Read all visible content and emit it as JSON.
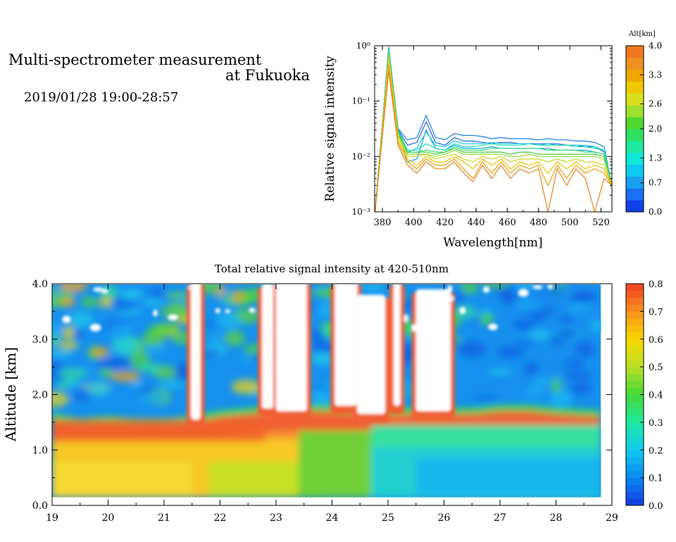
{
  "header": {
    "title_line1": "Multi-spectrometer measurement",
    "title_line2": "at Fukuoka",
    "date": "2019/01/28 19:00-28:57"
  },
  "chart_data": [
    {
      "type": "line",
      "xlabel": "Wavelength[nm]",
      "ylabel": "Relative signal intensity",
      "xlim": [
        375,
        527
      ],
      "ylim": [
        0.001,
        1
      ],
      "y_scale": "log",
      "x_ticks": [
        380,
        400,
        420,
        440,
        460,
        480,
        500,
        520
      ],
      "y_ticks": [
        {
          "value": 0.001,
          "label": "10⁻³"
        },
        {
          "value": 0.01,
          "label": "10⁻²"
        },
        {
          "value": 0.1,
          "label": "10⁻¹"
        },
        {
          "value": 1,
          "label": "10⁰"
        }
      ],
      "x": [
        375,
        384,
        390,
        396,
        402,
        408,
        414,
        420,
        426,
        432,
        438,
        444,
        450,
        456,
        462,
        468,
        474,
        480,
        486,
        492,
        498,
        504,
        510,
        516,
        522,
        527
      ],
      "series": [
        {
          "alt": 0.0,
          "color": "#1f5fe0",
          "values": [
            0.0008,
            0.95,
            0.031,
            0.016,
            0.018,
            0.042,
            0.018,
            0.016,
            0.022,
            0.019,
            0.019,
            0.018,
            0.017,
            0.018,
            0.018,
            0.017,
            0.017,
            0.017,
            0.017,
            0.017,
            0.016,
            0.016,
            0.015,
            0.015,
            0.012,
            0.003
          ]
        },
        {
          "alt": 0.35,
          "color": "#1a7ee8",
          "values": [
            0.0008,
            0.92,
            0.032,
            0.02,
            0.022,
            0.055,
            0.022,
            0.02,
            0.026,
            0.024,
            0.024,
            0.023,
            0.021,
            0.022,
            0.021,
            0.021,
            0.021,
            0.02,
            0.021,
            0.02,
            0.02,
            0.019,
            0.019,
            0.018,
            0.015,
            0.003
          ]
        },
        {
          "alt": 0.7,
          "color": "#0aa0ea",
          "values": [
            0.0008,
            0.9,
            0.03,
            0.008,
            0.009,
            0.03,
            0.014,
            0.013,
            0.016,
            0.014,
            0.014,
            0.014,
            0.015,
            0.014,
            0.014,
            0.014,
            0.014,
            0.014,
            0.014,
            0.013,
            0.013,
            0.013,
            0.013,
            0.012,
            0.011,
            0.003
          ]
        },
        {
          "alt": 1.0,
          "color": "#10c8e0",
          "values": [
            0.0008,
            0.88,
            0.03,
            0.012,
            0.014,
            0.028,
            0.016,
            0.015,
            0.019,
            0.017,
            0.017,
            0.017,
            0.018,
            0.017,
            0.017,
            0.017,
            0.017,
            0.016,
            0.017,
            0.016,
            0.016,
            0.016,
            0.016,
            0.015,
            0.013,
            0.003
          ]
        },
        {
          "alt": 1.3,
          "color": "#20e0b0",
          "values": [
            0.0008,
            0.85,
            0.03,
            0.013,
            0.013,
            0.017,
            0.014,
            0.013,
            0.017,
            0.015,
            0.015,
            0.016,
            0.017,
            0.016,
            0.016,
            0.016,
            0.017,
            0.016,
            0.016,
            0.016,
            0.016,
            0.015,
            0.015,
            0.014,
            0.013,
            0.003
          ]
        },
        {
          "alt": 1.6,
          "color": "#38dc78",
          "values": [
            0.0008,
            0.8,
            0.028,
            0.012,
            0.012,
            0.013,
            0.012,
            0.012,
            0.015,
            0.013,
            0.013,
            0.013,
            0.014,
            0.014,
            0.014,
            0.014,
            0.014,
            0.014,
            0.013,
            0.013,
            0.013,
            0.013,
            0.012,
            0.012,
            0.011,
            0.003
          ]
        },
        {
          "alt": 2.0,
          "color": "#40c83c",
          "values": [
            0.0008,
            0.75,
            0.028,
            0.012,
            0.012,
            0.012,
            0.011,
            0.012,
            0.014,
            0.012,
            0.012,
            0.012,
            0.012,
            0.012,
            0.011,
            0.012,
            0.012,
            0.011,
            0.011,
            0.011,
            0.011,
            0.011,
            0.011,
            0.011,
            0.01,
            0.003
          ]
        },
        {
          "alt": 2.3,
          "color": "#90d830",
          "values": [
            0.0008,
            0.7,
            0.025,
            0.011,
            0.011,
            0.011,
            0.01,
            0.011,
            0.013,
            0.011,
            0.011,
            0.011,
            0.011,
            0.011,
            0.01,
            0.01,
            0.011,
            0.01,
            0.01,
            0.01,
            0.01,
            0.01,
            0.01,
            0.01,
            0.009,
            0.003
          ]
        },
        {
          "alt": 2.6,
          "color": "#c8d820",
          "values": [
            0.0008,
            0.62,
            0.023,
            0.01,
            0.01,
            0.011,
            0.009,
            0.01,
            0.011,
            0.009,
            0.008,
            0.01,
            0.009,
            0.01,
            0.008,
            0.009,
            0.009,
            0.009,
            0.008,
            0.009,
            0.008,
            0.009,
            0.008,
            0.008,
            0.007,
            0.003
          ]
        },
        {
          "alt": 3.0,
          "color": "#f0c000",
          "values": [
            0.0008,
            0.55,
            0.02,
            0.009,
            0.007,
            0.01,
            0.008,
            0.008,
            0.01,
            0.008,
            0.006,
            0.009,
            0.007,
            0.009,
            0.006,
            0.008,
            0.007,
            0.008,
            0.005,
            0.008,
            0.006,
            0.008,
            0.006,
            0.007,
            0.006,
            0.003
          ]
        },
        {
          "alt": 3.3,
          "color": "#f0a010",
          "values": [
            0.0008,
            0.45,
            0.018,
            0.008,
            0.006,
            0.009,
            0.007,
            0.007,
            0.009,
            0.006,
            0.004,
            0.008,
            0.005,
            0.008,
            0.005,
            0.007,
            0.006,
            0.007,
            0.003,
            0.007,
            0.004,
            0.007,
            0.005,
            0.006,
            0.005,
            0.003
          ]
        },
        {
          "alt": 3.6,
          "color": "#e88020",
          "values": [
            0.0008,
            0.35,
            0.016,
            0.007,
            0.005,
            0.008,
            0.006,
            0.006,
            0.008,
            0.005,
            0.0035,
            0.007,
            0.004,
            0.007,
            0.004,
            0.006,
            0.005,
            0.006,
            0.001,
            0.006,
            0.003,
            0.006,
            0.004,
            0.001,
            0.004,
            0.003
          ]
        }
      ],
      "colorbar": {
        "title": "Alt[km]",
        "range": [
          0,
          4
        ],
        "tick_labels": [
          "0.0",
          "0.7",
          "1.3",
          "2.0",
          "2.6",
          "3.3",
          "4.0"
        ],
        "colors": [
          "#1040e8",
          "#1a70f0",
          "#1aa0f0",
          "#10c8f0",
          "#10e8d8",
          "#20e8a0",
          "#30e060",
          "#50d830",
          "#a0e030",
          "#d8e020",
          "#f0c800",
          "#f0a800",
          "#f09020",
          "#f07820"
        ]
      }
    },
    {
      "type": "heatmap",
      "title": "Total relative signal intensity at 420-510nm",
      "ylabel": "Altitude [km]",
      "xlim": [
        19,
        29
      ],
      "ylim": [
        0,
        4
      ],
      "data_x_range": [
        19,
        28.8
      ],
      "data_y_range": [
        0.15,
        4
      ],
      "x_ticks": [
        "19",
        "20",
        "21",
        "22",
        "23",
        "24",
        "25",
        "26",
        "27",
        "28",
        "29"
      ],
      "y_ticks": [
        "0.0",
        "1.0",
        "2.0",
        "3.0",
        "4.0"
      ],
      "colorbar": {
        "range": [
          0,
          0.8
        ],
        "tick_labels": [
          "0.0",
          "0.1",
          "0.2",
          "0.3",
          "0.4",
          "0.5",
          "0.6",
          "0.7",
          "0.8"
        ],
        "stops": [
          "#1438e0",
          "#0a88f0",
          "#12c8f0",
          "#20e8a0",
          "#44d838",
          "#b8e028",
          "#f8d800",
          "#f89020",
          "#f04020"
        ]
      },
      "boundary_layer_top_km": [
        {
          "x": 19.0,
          "h": 1.55
        },
        {
          "x": 19.5,
          "h": 1.45
        },
        {
          "x": 20.0,
          "h": 1.5
        },
        {
          "x": 20.5,
          "h": 1.45
        },
        {
          "x": 21.0,
          "h": 1.45
        },
        {
          "x": 21.5,
          "h": 1.5
        },
        {
          "x": 22.0,
          "h": 1.6
        },
        {
          "x": 22.5,
          "h": 1.65
        },
        {
          "x": 23.0,
          "h": 1.7
        },
        {
          "x": 23.5,
          "h": 1.7
        },
        {
          "x": 24.0,
          "h": 1.7
        },
        {
          "x": 24.5,
          "h": 1.65
        },
        {
          "x": 25.0,
          "h": 1.65
        },
        {
          "x": 25.5,
          "h": 1.65
        },
        {
          "x": 26.0,
          "h": 1.65
        },
        {
          "x": 26.5,
          "h": 1.65
        },
        {
          "x": 27.0,
          "h": 1.7
        },
        {
          "x": 27.5,
          "h": 1.7
        },
        {
          "x": 28.0,
          "h": 1.65
        },
        {
          "x": 28.8,
          "h": 1.6
        }
      ],
      "cloud_columns": [
        {
          "x0": 21.48,
          "x1": 21.65,
          "y0": 1.55,
          "y1": 4.0
        },
        {
          "x0": 22.75,
          "x1": 22.95,
          "y0": 1.75,
          "y1": 3.95
        },
        {
          "x0": 23.0,
          "x1": 23.55,
          "y0": 1.7,
          "y1": 4.0
        },
        {
          "x0": 24.05,
          "x1": 24.45,
          "y0": 1.8,
          "y1": 4.0
        },
        {
          "x0": 24.45,
          "x1": 24.95,
          "y0": 1.65,
          "y1": 3.75
        },
        {
          "x0": 25.1,
          "x1": 25.22,
          "y0": 1.8,
          "y1": 4.0
        },
        {
          "x0": 25.5,
          "x1": 26.12,
          "y0": 1.7,
          "y1": 3.85
        }
      ]
    }
  ]
}
